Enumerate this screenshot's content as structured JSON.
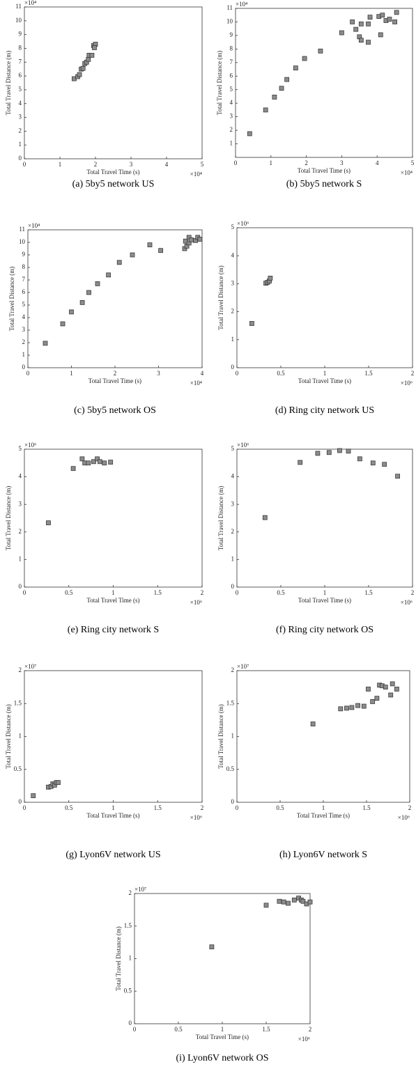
{
  "chart_data": [
    {
      "type": "scatter",
      "caption": "(a)  5by5 network US",
      "x_label": "Total Travel Time (s)",
      "y_label": "Total Travel Distance (m)",
      "x_multiplier": "×10⁴",
      "y_multiplier": "×10⁴",
      "color": "#8c8c8c",
      "xlim": [
        0,
        5
      ],
      "ylim": [
        0,
        11
      ],
      "xticks": [
        0,
        1,
        2,
        3,
        4,
        5
      ],
      "yticks": [
        0,
        1,
        2,
        3,
        4,
        5,
        6,
        7,
        8,
        9,
        10,
        11
      ],
      "x": [
        1.4,
        1.5,
        1.55,
        1.6,
        1.65,
        1.7,
        1.75,
        1.8,
        1.82,
        1.9,
        1.95,
        2.0,
        1.97
      ],
      "values": [
        5.8,
        5.95,
        6.1,
        6.5,
        6.55,
        6.9,
        7.0,
        7.2,
        7.5,
        7.5,
        8.2,
        8.3,
        8.05
      ]
    },
    {
      "type": "scatter",
      "caption": "(b)  5by5 network S",
      "x_label": "Total Travel Time (s)",
      "y_label": "Total Travel Distance (m)",
      "x_multiplier": "×10⁴",
      "y_multiplier": "×10⁴",
      "color": "#8c8c8c",
      "xlim": [
        0,
        5
      ],
      "ylim": [
        0,
        11
      ],
      "xticks": [
        0,
        1,
        2,
        3,
        4,
        5
      ],
      "yticks": [
        1,
        2,
        3,
        4,
        5,
        6,
        7,
        8,
        9,
        10,
        11
      ],
      "x": [
        0.4,
        0.85,
        1.1,
        1.3,
        1.45,
        1.7,
        1.95,
        2.4,
        3.0,
        3.3,
        3.4,
        3.5,
        3.55,
        3.55,
        3.75,
        3.75,
        3.8,
        4.05,
        4.1,
        4.15,
        4.25,
        4.35,
        4.5,
        4.55
      ],
      "values": [
        1.75,
        3.5,
        4.45,
        5.1,
        5.75,
        6.6,
        7.3,
        7.85,
        9.2,
        10.0,
        9.45,
        8.9,
        8.65,
        9.85,
        9.85,
        8.5,
        10.35,
        10.4,
        9.05,
        10.5,
        10.1,
        10.2,
        10.0,
        10.7
      ]
    },
    {
      "type": "scatter",
      "caption": "(c)  5by5 network OS",
      "x_label": "Total Travel Time (s)",
      "y_label": "Total Travel Distance (m)",
      "x_multiplier": "×10⁴",
      "y_multiplier": "×10⁴",
      "color": "#8c8c8c",
      "xlim": [
        0,
        4
      ],
      "ylim": [
        0,
        11
      ],
      "xticks": [
        0,
        1,
        2,
        3,
        4
      ],
      "yticks": [
        0,
        1,
        2,
        3,
        4,
        5,
        6,
        7,
        8,
        9,
        10,
        11
      ],
      "x": [
        0.4,
        0.8,
        1.0,
        1.25,
        1.4,
        1.6,
        1.85,
        2.1,
        2.4,
        2.8,
        3.05,
        3.6,
        3.62,
        3.65,
        3.7,
        3.7,
        3.75,
        3.85,
        3.9,
        3.95
      ],
      "values": [
        1.95,
        3.5,
        4.45,
        5.2,
        6.0,
        6.7,
        7.4,
        8.4,
        9.0,
        9.8,
        9.35,
        9.5,
        10.1,
        9.7,
        10.4,
        9.95,
        10.2,
        10.15,
        10.4,
        10.25
      ]
    },
    {
      "type": "scatter",
      "caption": "(d)  Ring city network US",
      "x_label": "Total Travel Time (s)",
      "y_label": "Total Travel Distance (m)",
      "x_multiplier": "×10⁶",
      "y_multiplier": "×10⁶",
      "color": "#8c8c8c",
      "xlim": [
        0,
        2
      ],
      "ylim": [
        0,
        5
      ],
      "xticks": [
        0,
        0.5,
        1,
        1.5,
        2
      ],
      "yticks": [
        0,
        1,
        2,
        3,
        4,
        5
      ],
      "x": [
        0.17,
        0.33,
        0.35,
        0.37,
        0.38
      ],
      "values": [
        1.58,
        3.02,
        3.05,
        3.1,
        3.2
      ]
    },
    {
      "type": "scatter",
      "caption": "(e)  Ring city network S",
      "x_label": "Total Travel Time (s)",
      "y_label": "Total Travel Distance (m)",
      "x_multiplier": "×10⁶",
      "y_multiplier": "×10⁶",
      "color": "#8c8c8c",
      "xlim": [
        0,
        2
      ],
      "ylim": [
        0,
        5
      ],
      "xticks": [
        0,
        0.5,
        1,
        1.5,
        2
      ],
      "yticks": [
        0,
        1,
        2,
        3,
        4,
        5
      ],
      "x": [
        0.27,
        0.55,
        0.65,
        0.68,
        0.72,
        0.78,
        0.82,
        0.85,
        0.9,
        0.97
      ],
      "values": [
        2.33,
        4.3,
        4.65,
        4.5,
        4.5,
        4.55,
        4.65,
        4.55,
        4.5,
        4.53
      ]
    },
    {
      "type": "scatter",
      "caption": "(f)  Ring city network OS",
      "x_label": "Total Travel Time (s)",
      "y_label": "Total Travel Distance (m)",
      "x_multiplier": "×10⁶",
      "y_multiplier": "×10⁶",
      "color": "#8c8c8c",
      "xlim": [
        0,
        2
      ],
      "ylim": [
        0,
        5
      ],
      "xticks": [
        0,
        0.5,
        1,
        1.5,
        2
      ],
      "yticks": [
        0,
        1,
        2,
        3,
        4,
        5
      ],
      "x": [
        0.32,
        0.72,
        0.92,
        1.05,
        1.17,
        1.27,
        1.4,
        1.55,
        1.68,
        1.83
      ],
      "values": [
        2.52,
        4.52,
        4.85,
        4.88,
        4.95,
        4.93,
        4.65,
        4.5,
        4.45,
        4.02
      ]
    },
    {
      "type": "scatter",
      "caption": "(g)  Lyon6V network US",
      "x_label": "Total Travel Time (s)",
      "y_label": "Total Travel Distance (m)",
      "x_multiplier": "×10⁶",
      "y_multiplier": "×10⁷",
      "color": "#8c8c8c",
      "xlim": [
        0,
        2
      ],
      "ylim": [
        0,
        2
      ],
      "xticks": [
        0,
        0.5,
        1,
        1.5,
        2
      ],
      "yticks": [
        0,
        0.5,
        1,
        1.5,
        2
      ],
      "x": [
        0.1,
        0.27,
        0.3,
        0.32,
        0.34,
        0.36,
        0.38
      ],
      "values": [
        0.1,
        0.23,
        0.24,
        0.28,
        0.26,
        0.3,
        0.3
      ]
    },
    {
      "type": "scatter",
      "caption": "(h)  Lyon6V network S",
      "x_label": "Total Travel Time (s)",
      "y_label": "Total Travel Distance (m)",
      "x_multiplier": "×10⁶",
      "y_multiplier": "×10⁷",
      "color": "#8c8c8c",
      "xlim": [
        0,
        2
      ],
      "ylim": [
        0,
        2
      ],
      "xticks": [
        0,
        0.5,
        1,
        1.5,
        2
      ],
      "yticks": [
        0,
        0.5,
        1,
        1.5,
        2
      ],
      "x": [
        0.88,
        1.2,
        1.27,
        1.33,
        1.4,
        1.47,
        1.52,
        1.57,
        1.62,
        1.65,
        1.68,
        1.72,
        1.78,
        1.8,
        1.85
      ],
      "values": [
        1.19,
        1.42,
        1.43,
        1.44,
        1.47,
        1.46,
        1.72,
        1.53,
        1.58,
        1.78,
        1.77,
        1.75,
        1.63,
        1.8,
        1.72
      ]
    },
    {
      "type": "scatter",
      "caption": "(i)  Lyon6V network OS",
      "x_label": "Total Travel Time (s)",
      "y_label": "Total Travel Distance (m)",
      "x_multiplier": "×10⁶",
      "y_multiplier": "×10⁷",
      "color": "#8c8c8c",
      "xlim": [
        0,
        2
      ],
      "ylim": [
        0,
        2
      ],
      "xticks": [
        0,
        0.5,
        1,
        1.5,
        2
      ],
      "yticks": [
        0,
        0.5,
        1,
        1.5,
        2
      ],
      "x": [
        0.88,
        1.5,
        1.65,
        1.7,
        1.75,
        1.82,
        1.87,
        1.9,
        1.92,
        1.96,
        2.0
      ],
      "values": [
        1.18,
        1.82,
        1.88,
        1.87,
        1.85,
        1.9,
        1.93,
        1.9,
        1.88,
        1.84,
        1.87
      ]
    }
  ]
}
